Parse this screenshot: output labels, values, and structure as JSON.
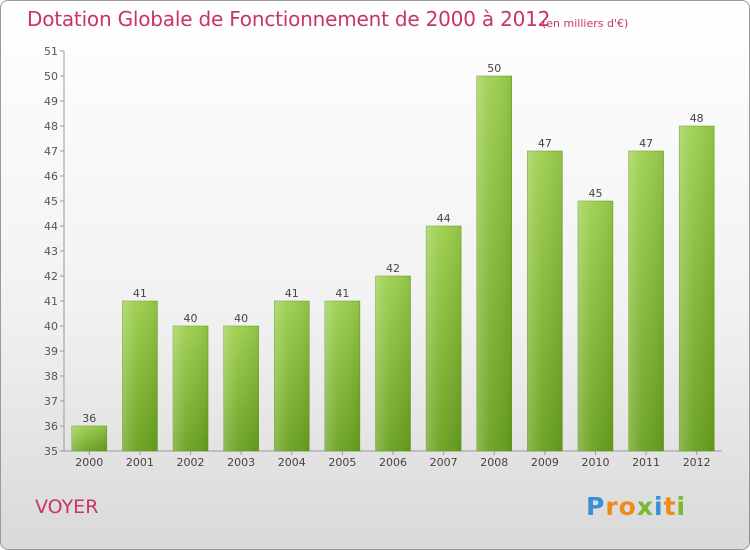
{
  "header": {
    "title": "Dotation Globale de Fonctionnement de 2000 à 2012",
    "unit_note": "(en milliers d'€)"
  },
  "commune": "VOYER",
  "logo": {
    "letters": [
      "P",
      "r",
      "o",
      "x",
      "i",
      "t",
      "i"
    ],
    "colors": [
      "#3a8fd6",
      "#f08a1c",
      "#f08a1c",
      "#7ab82e",
      "#3a8fd6",
      "#f08a1c",
      "#7ab82e"
    ]
  },
  "chart_data": {
    "type": "bar",
    "categories": [
      "2000",
      "2001",
      "2002",
      "2003",
      "2004",
      "2005",
      "2006",
      "2007",
      "2008",
      "2009",
      "2010",
      "2011",
      "2012"
    ],
    "values": [
      36,
      41,
      40,
      40,
      41,
      41,
      42,
      44,
      50,
      47,
      45,
      47,
      48
    ],
    "title": "Dotation Globale de Fonctionnement de 2000 à 2012",
    "ylim": [
      35,
      51
    ],
    "yticks": [
      35,
      36,
      37,
      38,
      39,
      40,
      41,
      42,
      43,
      44,
      45,
      46,
      47,
      48,
      49,
      50,
      51
    ],
    "grid": false,
    "bar_color": "#8cc63f",
    "bar_color_dark": "#6aa022"
  }
}
